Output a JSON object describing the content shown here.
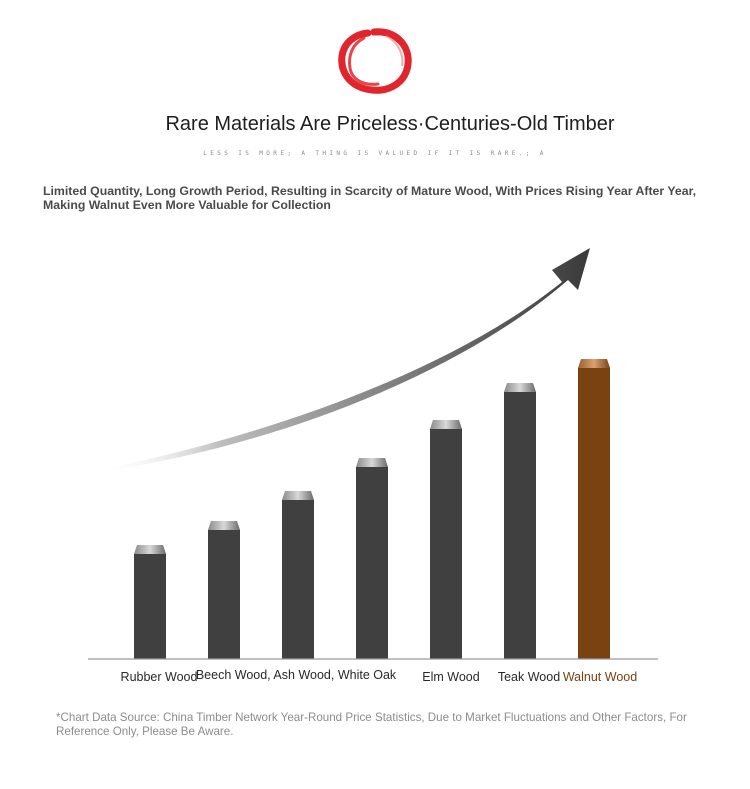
{
  "header": {
    "logo": "red-brush-circle",
    "title": "Rare Materials Are Priceless·Centuries-Old Timber",
    "tagline": "LESS IS MORE; A THING IS VALUED IF IT IS RARE.; A",
    "description": "Limited Quantity, Long Growth Period, Resulting in Scarcity of Mature Wood, With Prices Rising Year After Year, Making Walnut Even More Valuable for Collection"
  },
  "chart_data": {
    "type": "bar",
    "categories": [
      "Rubber Wood",
      "Beech Wood, Ash Wood, White Oak",
      "Elm Wood",
      "Teak Wood",
      "Walnut Wood"
    ],
    "bars": [
      {
        "category_index": 0,
        "value": 114
      },
      {
        "category_index": 1,
        "value": 138
      },
      {
        "category_index": 1,
        "value": 168
      },
      {
        "category_index": 1,
        "value": 201
      },
      {
        "category_index": 2,
        "value": 239
      },
      {
        "category_index": 3,
        "value": 276
      },
      {
        "category_index": 4,
        "value": 300
      }
    ],
    "ylim": [
      0,
      320
    ],
    "highlight_category": "Walnut Wood",
    "colors": {
      "bar": "#404040",
      "highlight": "#7a4210",
      "axis": "#9a9a9a"
    },
    "annotation": "rising-trend-arrow",
    "grid": false,
    "legend": "none"
  },
  "footer": {
    "note": "*Chart Data Source: China Timber Network Year-Round Price Statistics, Due to Market Fluctuations and Other Factors, For Reference Only, Please Be Aware."
  }
}
